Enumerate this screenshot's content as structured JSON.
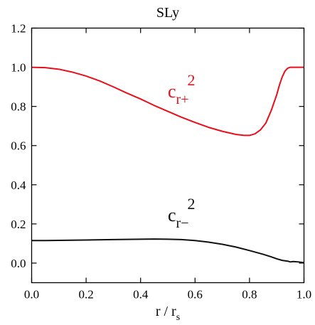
{
  "chart_data": {
    "type": "line",
    "title": "SLy",
    "xlabel": {
      "main": "r / r",
      "sub": "s"
    },
    "ylabel": "",
    "xlim": [
      0.0,
      1.0
    ],
    "ylim": [
      -0.1,
      1.2
    ],
    "xticks": [
      0.0,
      0.2,
      0.4,
      0.6,
      0.8,
      1.0
    ],
    "xtick_labels": [
      "0.0",
      "0.2",
      "0.4",
      "0.6",
      "0.8",
      "1.0"
    ],
    "yticks": [
      0.0,
      0.2,
      0.4,
      0.6,
      0.8,
      1.0,
      1.2
    ],
    "ytick_labels": [
      "0.0",
      "0.2",
      "0.4",
      "0.6",
      "0.8",
      "1.0",
      "1.2"
    ],
    "grid": false,
    "legend": "none",
    "series": [
      {
        "label": {
          "base": "c",
          "sub": "r+",
          "sup": "2"
        },
        "color": "#e8101a",
        "x": [
          0.0,
          0.05,
          0.1,
          0.15,
          0.2,
          0.25,
          0.3,
          0.35,
          0.4,
          0.45,
          0.5,
          0.55,
          0.6,
          0.65,
          0.7,
          0.75,
          0.78,
          0.8,
          0.82,
          0.84,
          0.86,
          0.88,
          0.9,
          0.91,
          0.92,
          0.93,
          0.94,
          0.95,
          0.96,
          1.0
        ],
        "y": [
          1.0,
          0.998,
          0.99,
          0.975,
          0.955,
          0.93,
          0.9,
          0.868,
          0.838,
          0.805,
          0.775,
          0.745,
          0.718,
          0.693,
          0.673,
          0.657,
          0.652,
          0.652,
          0.66,
          0.68,
          0.715,
          0.78,
          0.86,
          0.91,
          0.95,
          0.98,
          0.995,
          1.0,
          1.0,
          1.0
        ]
      },
      {
        "label": {
          "base": "c",
          "sub": "r−",
          "sup": "2"
        },
        "color": "#111111",
        "x": [
          0.0,
          0.05,
          0.1,
          0.2,
          0.3,
          0.4,
          0.45,
          0.5,
          0.55,
          0.6,
          0.65,
          0.7,
          0.75,
          0.8,
          0.85,
          0.88,
          0.9,
          0.92,
          0.94,
          0.95,
          0.96,
          0.98,
          1.0
        ],
        "y": [
          0.115,
          0.115,
          0.116,
          0.118,
          0.12,
          0.122,
          0.123,
          0.122,
          0.12,
          0.115,
          0.107,
          0.096,
          0.082,
          0.064,
          0.045,
          0.032,
          0.022,
          0.014,
          0.01,
          0.006,
          0.008,
          0.006,
          0.002
        ]
      }
    ]
  }
}
